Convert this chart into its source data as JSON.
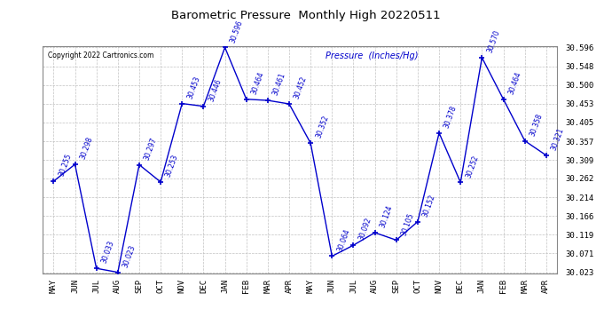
{
  "title": "Barometric Pressure  Monthly High 20220511",
  "copyright": "Copyright 2022 Cartronics.com",
  "ylabel": "Pressure  (Inches/Hg)",
  "months": [
    "MAY",
    "JUN",
    "JUL",
    "AUG",
    "SEP",
    "OCT",
    "NOV",
    "DEC",
    "JAN",
    "FEB",
    "MAR",
    "APR",
    "MAY",
    "JUN",
    "JUL",
    "AUG",
    "SEP",
    "OCT",
    "NOV",
    "DEC",
    "JAN",
    "FEB",
    "MAR",
    "APR"
  ],
  "values": [
    30.255,
    30.298,
    30.033,
    30.023,
    30.297,
    30.253,
    30.453,
    30.446,
    30.596,
    30.464,
    30.461,
    30.452,
    30.352,
    30.064,
    30.092,
    30.124,
    30.105,
    30.152,
    30.378,
    30.252,
    30.57,
    30.464,
    30.358,
    30.321
  ],
  "ylim_min": 30.023,
  "ylim_max": 30.596,
  "yticks": [
    30.023,
    30.071,
    30.119,
    30.166,
    30.214,
    30.262,
    30.309,
    30.357,
    30.405,
    30.453,
    30.5,
    30.548,
    30.596
  ],
  "line_color": "#0000cc",
  "marker_color": "#0000cc",
  "title_color": "#000000",
  "label_color": "#0000cc",
  "grid_color": "#bbbbbb",
  "bg_color": "#ffffff"
}
